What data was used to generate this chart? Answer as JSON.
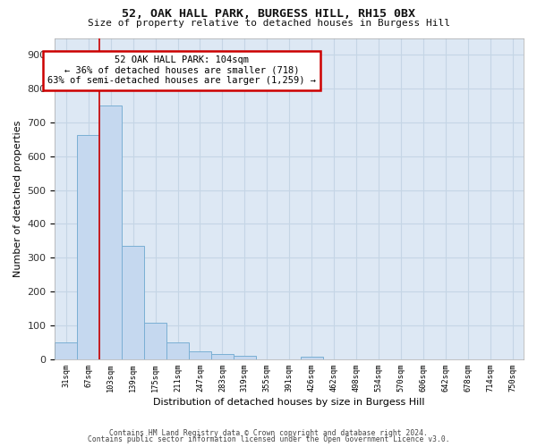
{
  "title_line1": "52, OAK HALL PARK, BURGESS HILL, RH15 0BX",
  "title_line2": "Size of property relative to detached houses in Burgess Hill",
  "xlabel": "Distribution of detached houses by size in Burgess Hill",
  "ylabel": "Number of detached properties",
  "bin_labels": [
    "31sqm",
    "67sqm",
    "103sqm",
    "139sqm",
    "175sqm",
    "211sqm",
    "247sqm",
    "283sqm",
    "319sqm",
    "355sqm",
    "391sqm",
    "426sqm",
    "462sqm",
    "498sqm",
    "534sqm",
    "570sqm",
    "606sqm",
    "642sqm",
    "678sqm",
    "714sqm",
    "750sqm"
  ],
  "bar_values": [
    50,
    663,
    750,
    335,
    107,
    50,
    22,
    15,
    10,
    0,
    0,
    8,
    0,
    0,
    0,
    0,
    0,
    0,
    0,
    0,
    0
  ],
  "bar_color": "#c5d8ef",
  "bar_edge_color": "#7aafd4",
  "annotation_text": "52 OAK HALL PARK: 104sqm\n← 36% of detached houses are smaller (718)\n63% of semi-detached houses are larger (1,259) →",
  "annotation_box_facecolor": "#ffffff",
  "annotation_box_edgecolor": "#cc0000",
  "vline_color": "#cc0000",
  "vline_x": 1.5,
  "ylim": [
    0,
    950
  ],
  "yticks": [
    0,
    100,
    200,
    300,
    400,
    500,
    600,
    700,
    800,
    900
  ],
  "grid_color": "#c5d5e5",
  "background_color": "#dde8f4",
  "footer_line1": "Contains HM Land Registry data © Crown copyright and database right 2024.",
  "footer_line2": "Contains public sector information licensed under the Open Government Licence v3.0."
}
